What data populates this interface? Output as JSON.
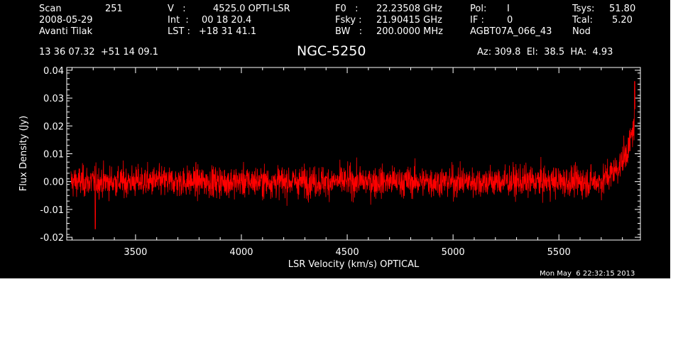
{
  "header": {
    "scan_label": "Scan",
    "scan_value": "251",
    "date": "2008-05-29",
    "observer": "Avanti Tilak",
    "coords": "13 36 07.32  +51 14 09.1",
    "v_label": "V   :",
    "v_value": "4525.0 OPTI-LSR",
    "int_label": "Int  :",
    "int_value": "00 18 20.4",
    "lst_label": "LST :",
    "lst_value": "+18 31 41.1",
    "f0_label": "F0   :",
    "f0_value": "22.23508 GHz",
    "fsky_label": "Fsky :",
    "fsky_value": "21.90415 GHz",
    "bw_label": "BW   :",
    "bw_value": "200.0000 MHz",
    "pol_label": "Pol:",
    "pol_value": "I",
    "if_label": "IF :",
    "if_value": "0",
    "project": "AGBT07A_066_43",
    "tsys_label": "Tsys:",
    "tsys_value": "51.80",
    "tcal_label": "Tcal:",
    "tcal_value": "5.20",
    "mode": "Nod",
    "pointing": "Az: 309.8  El:  38.5  HA:  4.93"
  },
  "title": "NGC-5250",
  "timestamp": "Mon May  6 22:32:15 2013",
  "chart_data": {
    "type": "line",
    "xlabel": "LSR Velocity (km/s) OPTICAL",
    "ylabel": "Flux Density (Jy)",
    "xlim": [
      3175,
      5885
    ],
    "ylim": [
      -0.021,
      0.041
    ],
    "xticks": [
      3500,
      4000,
      4500,
      5000,
      5500
    ],
    "yticks": [
      -0.02,
      -0.01,
      0.0,
      0.01,
      0.02,
      0.03,
      0.04
    ],
    "ytick_labels": [
      "-0.02",
      "-0.01",
      "0.00",
      "0.01",
      "0.02",
      "0.03",
      "0.04"
    ],
    "series": [
      {
        "color": "#ff0000",
        "x_start": 3195,
        "x_end": 5860,
        "n_points": 2600,
        "baseline": 0.0,
        "noise_sigma": 0.0055,
        "edge_rise": {
          "x": [
            5700,
            5780,
            5830,
            5860
          ],
          "y": [
            0.0,
            0.005,
            0.012,
            0.022
          ]
        },
        "max_point": {
          "x": 5858,
          "y": 0.036
        },
        "min_point": {
          "x": 3310,
          "y": -0.017
        }
      }
    ]
  }
}
